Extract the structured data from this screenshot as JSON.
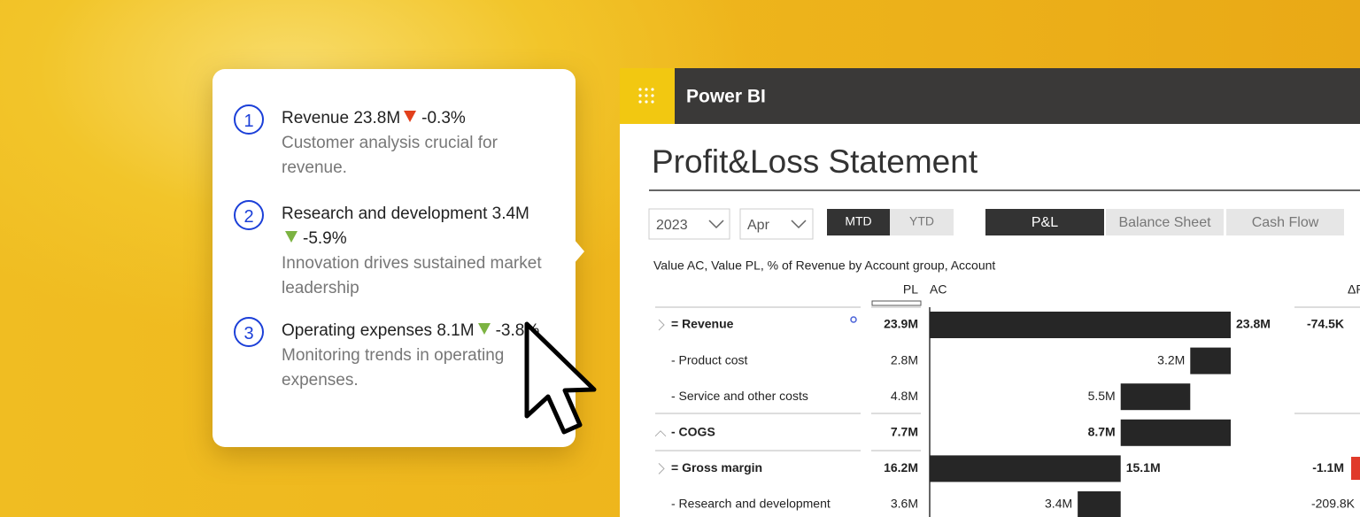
{
  "popup": {
    "items": [
      {
        "number": "1",
        "title": "Revenue 23.8M",
        "change": "-0.3%",
        "arrow_color": "#e2401c",
        "description": "Customer analysis crucial for revenue."
      },
      {
        "number": "2",
        "title": "Research and development 3.4M",
        "change": "-5.9%",
        "arrow_color": "#7cb342",
        "description": "Innovation drives sustained market leadership"
      },
      {
        "number": "3",
        "title": "Operating expenses 8.1M",
        "change": "-3.8%",
        "arrow_color": "#7cb342",
        "description": "Monitoring trends in operating expenses."
      }
    ]
  },
  "app": {
    "name": "Power BI"
  },
  "report": {
    "title": "Profit&Loss Statement",
    "filters": {
      "year": "2023",
      "month": "Apr"
    },
    "period_buttons": [
      "MTD",
      "YTD"
    ],
    "tabs": [
      "P&L",
      "Balance Sheet",
      "Cash Flow"
    ],
    "visual_title": "Value AC, Value PL, % of Revenue by Account group, Account",
    "columns": {
      "pl": "PL",
      "ac": "AC",
      "delta": "ΔP"
    },
    "rows": [
      {
        "account": "= Revenue",
        "bold": true,
        "pl": "23.9M",
        "ac": 23.8,
        "ac_label": "23.8M",
        "delta": "-74.5K"
      },
      {
        "account": "- Product cost",
        "bold": false,
        "pl": "2.8M",
        "ac": 3.2,
        "ac_label": "3.2M",
        "delta": null
      },
      {
        "account": "- Service and other costs",
        "bold": false,
        "pl": "4.8M",
        "ac": 5.5,
        "ac_label": "5.5M",
        "delta": null
      },
      {
        "account": "- COGS",
        "bold": true,
        "pl": "7.7M",
        "ac": 8.7,
        "ac_label": "8.7M",
        "delta": null
      },
      {
        "account": "= Gross margin",
        "bold": true,
        "pl": "16.2M",
        "ac": 15.1,
        "ac_label": "15.1M",
        "delta": "-1.1M"
      },
      {
        "account": "- Research and development",
        "bold": false,
        "pl": "3.6M",
        "ac": 3.4,
        "ac_label": "3.4M",
        "delta": "-209.8K"
      }
    ]
  }
}
